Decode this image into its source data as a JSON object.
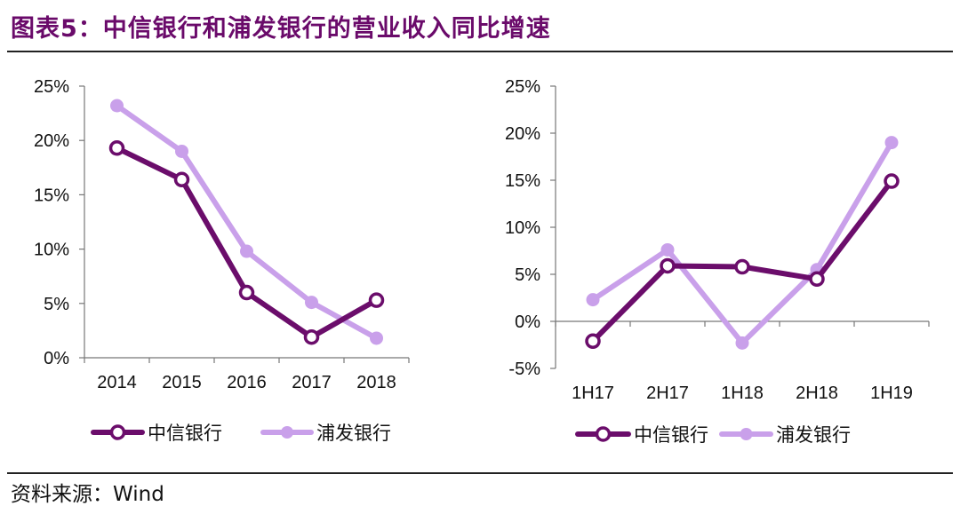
{
  "header": {
    "title": "图表5：中信银行和浦发银行的营业收入同比增速"
  },
  "footer": {
    "source": "资料来源：Wind"
  },
  "colors": {
    "citic": "#6b0d6b",
    "spdb": "#c9a0ea"
  },
  "chart_data": [
    {
      "type": "line",
      "categories": [
        "2014",
        "2015",
        "2016",
        "2017",
        "2018"
      ],
      "ylim": [
        0,
        25
      ],
      "yticks": [
        "0%",
        "5%",
        "10%",
        "15%",
        "20%",
        "25%"
      ],
      "ytick_values": [
        0,
        5,
        10,
        15,
        20,
        25
      ],
      "legend_position": "bottom",
      "grid": false,
      "series": [
        {
          "name": "中信银行",
          "values": [
            19.3,
            16.4,
            6.0,
            1.9,
            5.3
          ]
        },
        {
          "name": "浦发银行",
          "values": [
            23.2,
            19.0,
            9.8,
            5.1,
            1.8
          ]
        }
      ]
    },
    {
      "type": "line",
      "categories": [
        "1H17",
        "2H17",
        "1H18",
        "2H18",
        "1H19"
      ],
      "ylim": [
        -5,
        25
      ],
      "yticks": [
        "-5%",
        "0%",
        "5%",
        "10%",
        "15%",
        "20%",
        "25%"
      ],
      "ytick_values": [
        -5,
        0,
        5,
        10,
        15,
        20,
        25
      ],
      "legend_position": "bottom",
      "grid": false,
      "series": [
        {
          "name": "中信银行",
          "values": [
            -2.1,
            5.9,
            5.8,
            4.5,
            14.9
          ]
        },
        {
          "name": "浦发银行",
          "values": [
            2.3,
            7.6,
            -2.3,
            5.5,
            19.0
          ]
        }
      ]
    }
  ]
}
